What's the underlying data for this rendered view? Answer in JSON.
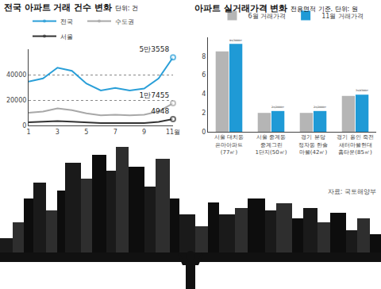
{
  "chart_data": [
    {
      "type": "line",
      "title": "전국 아파트 거래 건수 변화",
      "subtitle": "단위: 건",
      "x": [
        1,
        2,
        3,
        4,
        5,
        6,
        7,
        8,
        9,
        10,
        11
      ],
      "xlim": [
        1,
        11
      ],
      "xticks": [
        1,
        3,
        5,
        7,
        9,
        {
          "value": 11,
          "label": "11월"
        }
      ],
      "ylim": [
        0,
        60000
      ],
      "yticks": [
        0,
        20000,
        40000
      ],
      "grid": true,
      "legend": "top left",
      "data_labels": true,
      "series": [
        {
          "name": "전국",
          "color": "#2a9fd8",
          "values": [
            34500,
            37000,
            45500,
            43000,
            33000,
            27500,
            29500,
            27500,
            29000,
            37000,
            53558
          ],
          "value_labels": [
            null,
            null,
            null,
            null,
            null,
            null,
            null,
            null,
            null,
            null,
            "5만3558"
          ]
        },
        {
          "name": "수도권",
          "color": "#a8a8a8",
          "values": [
            10000,
            11000,
            13500,
            12000,
            9500,
            8000,
            8500,
            8000,
            8500,
            11000,
            17455
          ],
          "value_labels": [
            null,
            null,
            null,
            null,
            null,
            null,
            null,
            null,
            null,
            null,
            "1만7455"
          ]
        },
        {
          "name": "서울",
          "color": "#333333",
          "values": [
            2500,
            3000,
            3500,
            3000,
            2200,
            1800,
            1900,
            1700,
            1900,
            2800,
            4948
          ],
          "value_labels": [
            null,
            null,
            null,
            null,
            null,
            null,
            null,
            null,
            null,
            null,
            "4948"
          ]
        }
      ]
    },
    {
      "type": "bar",
      "title": "아파트 실거래가격 변화",
      "subtitle": "전용면적 기준. 단위: 원",
      "categories": [
        "서울 대치동\n은마아파트\n(77㎡)",
        "서울 중계동\n중계그린\n1단지(50㎡)",
        "경기 분당\n정자동 한솔\n마을(42㎡)",
        "경기 용인 죽전\n새터마을현대\n홈타운(85㎡)"
      ],
      "ylim": [
        0,
        10
      ],
      "yticks": [
        0,
        2,
        4,
        6,
        8
      ],
      "grid": false,
      "legend": "top",
      "data_labels": true,
      "series": [
        {
          "name": "6월 거래가격",
          "color": "#b5b5b5",
          "values": [
            8.5,
            2.0,
            2.0,
            3.8
          ]
        },
        {
          "name": "11월 거래가격",
          "color": "#1f9ad6",
          "values": [
            9.3,
            2.2,
            2.2,
            3.93
          ],
          "value_labels": [
            "9억3000만",
            "2억2000만",
            "2억2000만",
            "3억9300만"
          ]
        }
      ],
      "note": "자료: 국토해양부"
    }
  ]
}
